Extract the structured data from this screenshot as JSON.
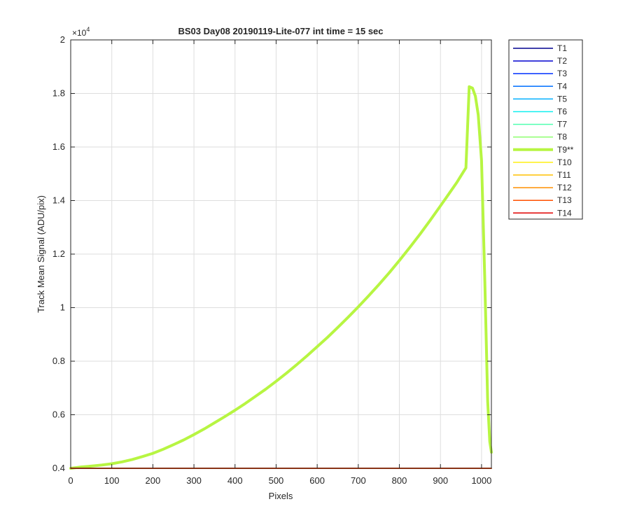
{
  "chart_data": {
    "type": "line",
    "title": "BS03 Day08 20190119-Lite-077 int time = 15 sec",
    "xlabel": "Pixels",
    "ylabel": "Track Mean Signal (ADU/pix)",
    "y_exponent_label": "×10",
    "y_exponent_power": "4",
    "xlim": [
      0,
      1024
    ],
    "ylim": [
      4000,
      20000
    ],
    "xticks": [
      0,
      100,
      200,
      300,
      400,
      500,
      600,
      700,
      800,
      900,
      1000
    ],
    "yticks": [
      4000,
      6000,
      8000,
      10000,
      12000,
      14000,
      16000,
      18000,
      20000
    ],
    "yticklabels": [
      "0.4",
      "0.6",
      "0.8",
      "1",
      "1.2",
      "1.4",
      "1.6",
      "1.8",
      "2"
    ],
    "grid": true,
    "legend_position": "outside-right",
    "series": [
      {
        "name": "T1",
        "color": "#00008f",
        "width": 1.5,
        "x": [
          0,
          1024
        ],
        "y": [
          4000,
          4000
        ]
      },
      {
        "name": "T2",
        "color": "#0000d0",
        "width": 1.5,
        "x": [
          0,
          1024
        ],
        "y": [
          4000,
          4000
        ]
      },
      {
        "name": "T3",
        "color": "#0030ff",
        "width": 1.5,
        "x": [
          0,
          1024
        ],
        "y": [
          4000,
          4000
        ]
      },
      {
        "name": "T4",
        "color": "#006fff",
        "width": 1.5,
        "x": [
          0,
          1024
        ],
        "y": [
          4000,
          4000
        ]
      },
      {
        "name": "T5",
        "color": "#00afff",
        "width": 1.5,
        "x": [
          0,
          1024
        ],
        "y": [
          4000,
          4000
        ]
      },
      {
        "name": "T6",
        "color": "#10efef",
        "width": 1.5,
        "x": [
          0,
          1024
        ],
        "y": [
          4000,
          4000
        ]
      },
      {
        "name": "T7",
        "color": "#50ffaf",
        "width": 1.5,
        "x": [
          0,
          1024
        ],
        "y": [
          4000,
          4000
        ]
      },
      {
        "name": "T8",
        "color": "#8fff70",
        "width": 1.5,
        "x": [
          0,
          1024
        ],
        "y": [
          4000,
          4000
        ]
      },
      {
        "name": "T9**",
        "color": "#b7f542",
        "width": 4,
        "x": [
          0,
          25,
          50,
          75,
          100,
          125,
          150,
          175,
          200,
          225,
          250,
          275,
          300,
          325,
          350,
          375,
          400,
          425,
          450,
          475,
          500,
          525,
          550,
          575,
          600,
          625,
          650,
          675,
          700,
          725,
          750,
          775,
          800,
          825,
          850,
          875,
          900,
          920,
          940,
          955,
          962,
          970,
          978,
          985,
          992,
          1000,
          1008,
          1015,
          1020,
          1024
        ],
        "y": [
          4000,
          4050,
          4080,
          4120,
          4170,
          4240,
          4330,
          4440,
          4560,
          4710,
          4880,
          5060,
          5260,
          5470,
          5700,
          5930,
          6170,
          6420,
          6690,
          6960,
          7250,
          7550,
          7870,
          8200,
          8540,
          8890,
          9260,
          9640,
          10030,
          10440,
          10860,
          11300,
          11760,
          12240,
          12740,
          13260,
          13800,
          14240,
          14680,
          15050,
          15220,
          18250,
          18200,
          17900,
          17200,
          15500,
          11000,
          6500,
          5000,
          4600
        ]
      },
      {
        "name": "T10",
        "color": "#ffef10",
        "width": 1.5,
        "x": [
          0,
          1024
        ],
        "y": [
          4000,
          4000
        ]
      },
      {
        "name": "T11",
        "color": "#ffc000",
        "width": 1.5,
        "x": [
          0,
          1024
        ],
        "y": [
          4000,
          4000
        ]
      },
      {
        "name": "T12",
        "color": "#ff8f00",
        "width": 1.5,
        "x": [
          0,
          1024
        ],
        "y": [
          4000,
          4000
        ]
      },
      {
        "name": "T13",
        "color": "#ff5000",
        "width": 1.5,
        "x": [
          0,
          1024
        ],
        "y": [
          4000,
          4000
        ]
      },
      {
        "name": "T14",
        "color": "#e00000",
        "width": 1.5,
        "x": [
          0,
          1024
        ],
        "y": [
          4000,
          4000
        ]
      }
    ]
  }
}
